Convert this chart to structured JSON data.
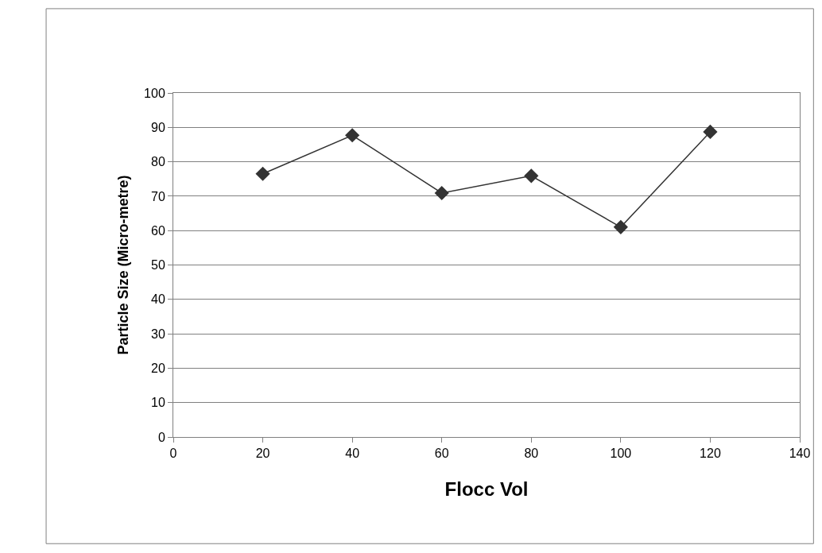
{
  "chart_data": {
    "type": "line",
    "xlabel": "Flocc Vol",
    "ylabel": "Particle Size (Micro-metre)",
    "x": [
      20,
      40,
      60,
      80,
      100,
      120
    ],
    "series": [
      {
        "color": "#333333",
        "values": [
          76.5,
          87.7,
          70.9,
          75.9,
          61,
          88.7
        ]
      }
    ],
    "xlim": [
      0,
      140
    ],
    "xticks": [
      0,
      20,
      40,
      60,
      80,
      100,
      120,
      140
    ],
    "ylim": [
      0,
      100
    ],
    "yticks": [
      0,
      10,
      20,
      30,
      40,
      50,
      60,
      70,
      80,
      90,
      100
    ],
    "grid": "y",
    "marker": "diamond",
    "line_style": "solid"
  }
}
